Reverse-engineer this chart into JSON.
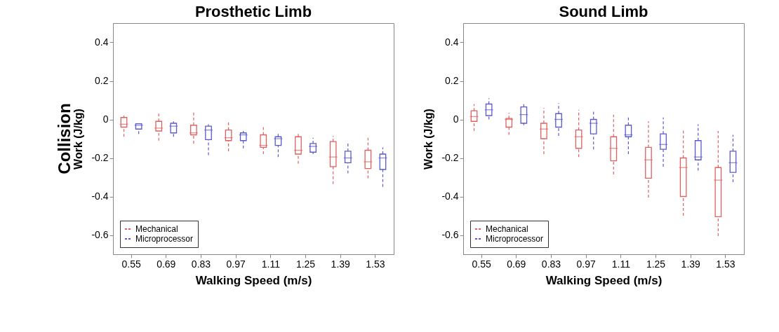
{
  "chart_data": [
    {
      "type": "box",
      "title": "Prosthetic Limb",
      "xlabel": "Walking Speed (m/s)",
      "ylabel": "Work (J/kg)",
      "annotations": [
        "Collision"
      ],
      "categories": [
        "0.55",
        "0.69",
        "0.83",
        "0.97",
        "1.11",
        "1.25",
        "1.39",
        "1.53"
      ],
      "series": [
        {
          "name": "Mechanical",
          "color": "#e06060",
          "boxes": [
            {
              "low": -0.09,
              "q1": -0.04,
              "median": -0.025,
              "q3": 0.01,
              "high": 0.02
            },
            {
              "low": -0.11,
              "q1": -0.06,
              "median": -0.045,
              "q3": -0.01,
              "high": 0.04
            },
            {
              "low": -0.125,
              "q1": -0.08,
              "median": -0.07,
              "q3": -0.03,
              "high": 0.04
            },
            {
              "low": -0.165,
              "q1": -0.11,
              "median": -0.095,
              "q3": -0.055,
              "high": -0.015
            },
            {
              "low": -0.18,
              "q1": -0.145,
              "median": -0.135,
              "q3": -0.08,
              "high": -0.04
            },
            {
              "low": -0.23,
              "q1": -0.18,
              "median": -0.16,
              "q3": -0.09,
              "high": -0.065
            },
            {
              "low": -0.335,
              "q1": -0.245,
              "median": -0.195,
              "q3": -0.115,
              "high": -0.085
            },
            {
              "low": -0.305,
              "q1": -0.255,
              "median": -0.22,
              "q3": -0.16,
              "high": -0.095
            }
          ]
        },
        {
          "name": "Microprocessor",
          "color": "#5a5ad0",
          "boxes": [
            {
              "low": -0.075,
              "q1": -0.05,
              "median": -0.03,
              "q3": -0.022,
              "high": -0.02
            },
            {
              "low": -0.09,
              "q1": -0.07,
              "median": -0.035,
              "q3": -0.02,
              "high": -0.01
            },
            {
              "low": -0.185,
              "q1": -0.105,
              "median": -0.055,
              "q3": -0.035,
              "high": -0.025
            },
            {
              "low": -0.15,
              "q1": -0.11,
              "median": -0.08,
              "q3": -0.07,
              "high": -0.06
            },
            {
              "low": -0.195,
              "q1": -0.135,
              "median": -0.1,
              "q3": -0.09,
              "high": -0.075
            },
            {
              "low": -0.18,
              "q1": -0.17,
              "median": -0.14,
              "q3": -0.125,
              "high": -0.095
            },
            {
              "low": -0.28,
              "q1": -0.225,
              "median": -0.2,
              "q3": -0.165,
              "high": -0.125
            },
            {
              "low": -0.35,
              "q1": -0.26,
              "median": -0.2,
              "q3": -0.18,
              "high": -0.145
            }
          ]
        }
      ],
      "ylim": [
        -0.7,
        0.5
      ],
      "yticks": [
        -0.6,
        -0.4,
        -0.2,
        0,
        0.2,
        0.4
      ],
      "legend": "bottom left",
      "grid": false
    },
    {
      "type": "box",
      "title": "Sound Limb",
      "xlabel": "Walking Speed (m/s)",
      "ylabel": "Work (J/kg)",
      "categories": [
        "0.55",
        "0.69",
        "0.83",
        "0.97",
        "1.11",
        "1.25",
        "1.39",
        "1.53"
      ],
      "series": [
        {
          "name": "Mechanical",
          "color": "#e06060",
          "boxes": [
            {
              "low": -0.06,
              "q1": -0.01,
              "median": 0.015,
              "q3": 0.045,
              "high": 0.08
            },
            {
              "low": -0.08,
              "q1": -0.04,
              "median": 0,
              "q3": 0.005,
              "high": 0.035
            },
            {
              "low": -0.18,
              "q1": -0.1,
              "median": -0.05,
              "q3": -0.02,
              "high": 0.06
            },
            {
              "low": -0.195,
              "q1": -0.15,
              "median": -0.09,
              "q3": -0.055,
              "high": 0.05
            },
            {
              "low": -0.285,
              "q1": -0.215,
              "median": -0.15,
              "q3": -0.09,
              "high": 0.025
            },
            {
              "low": -0.405,
              "q1": -0.305,
              "median": -0.21,
              "q3": -0.145,
              "high": -0.01
            },
            {
              "low": -0.5,
              "q1": -0.4,
              "median": -0.25,
              "q3": -0.2,
              "high": -0.05
            },
            {
              "low": -0.605,
              "q1": -0.505,
              "median": -0.315,
              "q3": -0.25,
              "high": -0.06
            }
          ]
        },
        {
          "name": "Microprocessor",
          "color": "#5a5ad0",
          "boxes": [
            {
              "low": 0,
              "q1": 0.02,
              "median": 0.05,
              "q3": 0.08,
              "high": 0.11
            },
            {
              "low": -0.03,
              "q1": -0.02,
              "median": 0.025,
              "q3": 0.065,
              "high": 0.09
            },
            {
              "low": -0.085,
              "q1": -0.04,
              "median": 0,
              "q3": 0.03,
              "high": 0.085
            },
            {
              "low": -0.155,
              "q1": -0.075,
              "median": -0.02,
              "q3": 0,
              "high": 0.05
            },
            {
              "low": -0.18,
              "q1": -0.09,
              "median": -0.08,
              "q3": -0.03,
              "high": 0.02
            },
            {
              "low": -0.245,
              "q1": -0.155,
              "median": -0.13,
              "q3": -0.075,
              "high": 0.01
            },
            {
              "low": -0.265,
              "q1": -0.21,
              "median": -0.195,
              "q3": -0.11,
              "high": -0.025
            },
            {
              "low": -0.325,
              "q1": -0.275,
              "median": -0.225,
              "q3": -0.165,
              "high": -0.08
            }
          ]
        }
      ],
      "ylim": [
        -0.7,
        0.5
      ],
      "yticks": [
        -0.6,
        -0.4,
        -0.2,
        0,
        0.2,
        0.4
      ],
      "legend": "bottom left",
      "grid": false
    }
  ]
}
